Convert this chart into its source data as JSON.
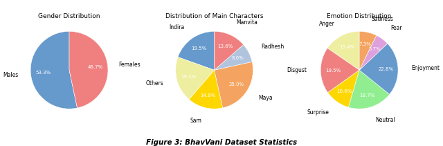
{
  "chart1": {
    "title": "Gender Distribution",
    "labels": [
      "Males",
      "Females"
    ],
    "values": [
      53.3,
      46.7
    ],
    "colors": [
      "#6699CC",
      "#F08080"
    ],
    "pct_labels": [
      "53.3%",
      "46.7%"
    ],
    "startangle": 90
  },
  "chart2": {
    "title": "Distribution of Main Characters",
    "labels": [
      "Indira",
      "Others",
      "Sam",
      "Maya",
      "Radhesh",
      "Manvita"
    ],
    "values": [
      19.58,
      19.2,
      14.8,
      25.0,
      8.0,
      13.6
    ],
    "colors": [
      "#6699CC",
      "#EEEEA0",
      "#FFD700",
      "#F4A460",
      "#B0C4DE",
      "#F08080"
    ],
    "startangle": 90
  },
  "chart3": {
    "title": "Emotion Distribution",
    "labels": [
      "Anger",
      "Disgust",
      "Surprise",
      "Neutral",
      "Enjoyment",
      "Fear",
      "Sadness"
    ],
    "values": [
      15.2,
      19.2,
      10.5,
      18.5,
      22.5,
      5.6,
      7.2
    ],
    "colors": [
      "#EEEEA0",
      "#F08080",
      "#FFD700",
      "#90EE90",
      "#6699CC",
      "#DDA0DD",
      "#F4A460"
    ],
    "startangle": 90
  },
  "figure_caption": "Figure 3: BhavVani Dataset Statistics"
}
